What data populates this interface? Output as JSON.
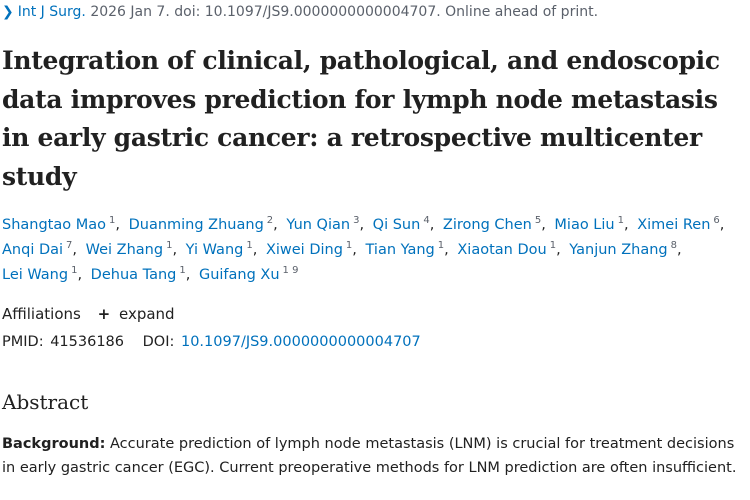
{
  "citation": {
    "journal": "Int J Surg.",
    "rest": " 2026 Jan 7. doi: 10.1097/JS9.0000000000004707. Online ahead of print."
  },
  "title": "Integration of clinical, pathological, and endoscopic data improves prediction for lymph node metastasis in early gastric cancer: a retrospective multicenter study",
  "authors": [
    {
      "name": "Shangtao Mao",
      "aff": "1"
    },
    {
      "name": "Duanming Zhuang",
      "aff": "2"
    },
    {
      "name": "Yun Qian",
      "aff": "3"
    },
    {
      "name": "Qi Sun",
      "aff": "4"
    },
    {
      "name": "Zirong Chen",
      "aff": "5"
    },
    {
      "name": "Miao Liu",
      "aff": "1"
    },
    {
      "name": "Ximei Ren",
      "aff": "6"
    },
    {
      "name": "Anqi Dai",
      "aff": "7"
    },
    {
      "name": "Wei Zhang",
      "aff": "1"
    },
    {
      "name": "Yi Wang",
      "aff": "1"
    },
    {
      "name": "Xiwei Ding",
      "aff": "1"
    },
    {
      "name": "Tian Yang",
      "aff": "1"
    },
    {
      "name": "Xiaotan Dou",
      "aff": "1"
    },
    {
      "name": "Yanjun Zhang",
      "aff": "8"
    },
    {
      "name": "Lei Wang",
      "aff": "1"
    },
    {
      "name": "Dehua Tang",
      "aff": "1"
    },
    {
      "name": "Guifang Xu",
      "aff": "1 9"
    }
  ],
  "affiliations": {
    "label": "Affiliations",
    "plus": "+",
    "expand": "expand"
  },
  "ids": {
    "pmid_label": "PMID:",
    "pmid": "41536186",
    "doi_label": "DOI:",
    "doi": "10.1097/JS9.0000000000004707"
  },
  "abstract": {
    "heading": "Abstract",
    "background_label": "Background:",
    "background_text": " Accurate prediction of lymph node metastasis (LNM) is crucial for treatment decisions in early gastric cancer (EGC). Current preoperative methods for LNM prediction are often insufficient."
  }
}
